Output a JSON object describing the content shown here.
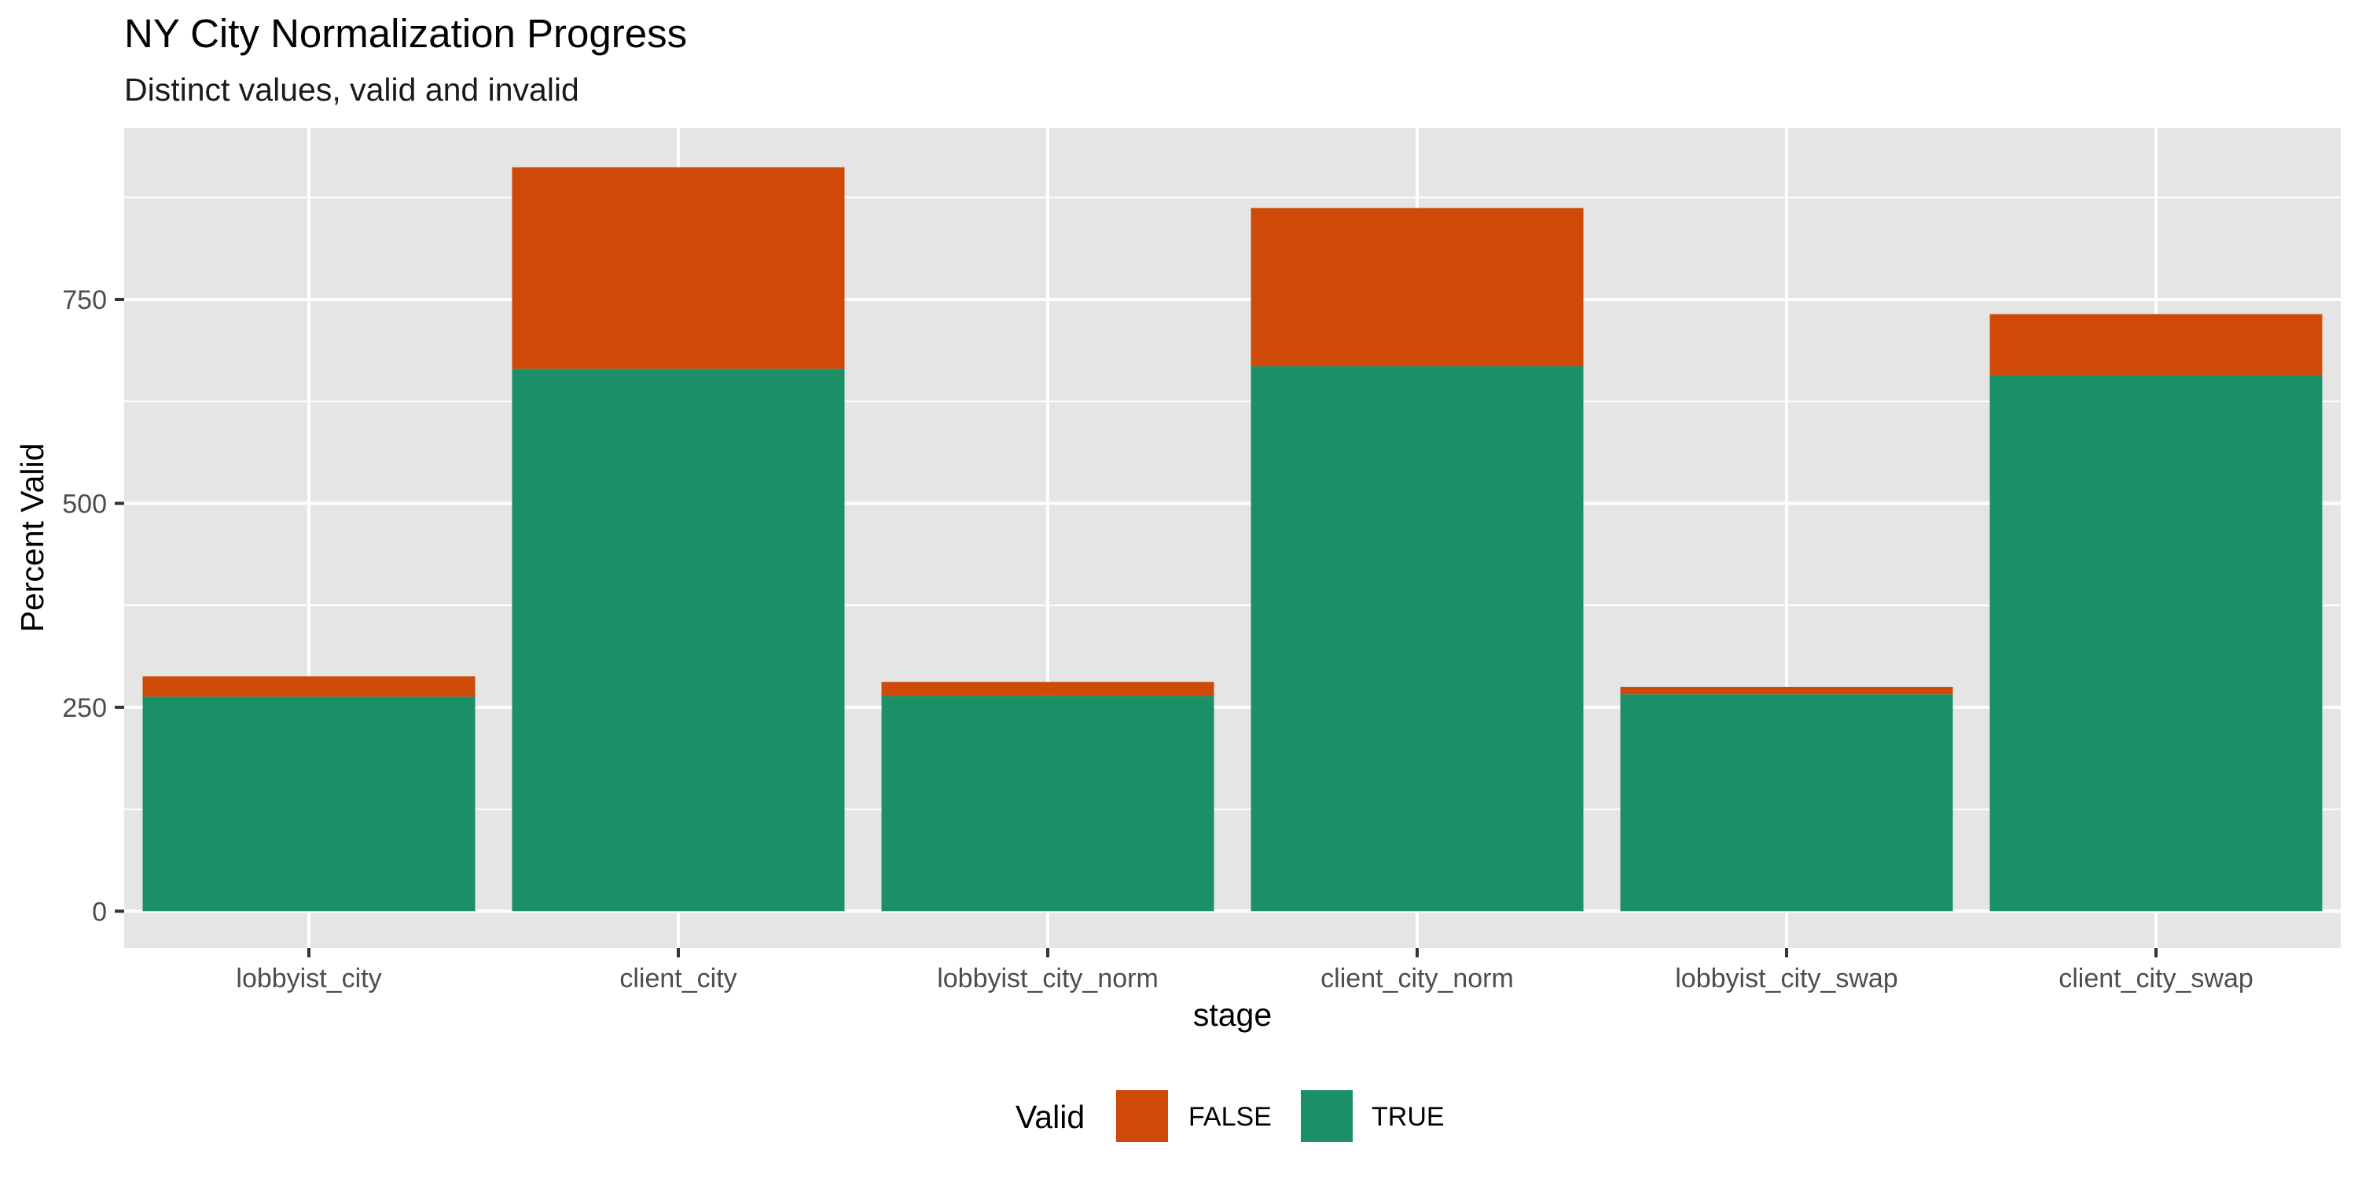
{
  "chart_data": {
    "type": "bar",
    "stacked": true,
    "title": "NY City Normalization Progress",
    "subtitle": "Distinct values, valid and invalid",
    "xlabel": "stage",
    "ylabel": "Percent Valid",
    "categories": [
      "lobbyist_city",
      "client_city",
      "lobbyist_city_norm",
      "client_city_norm",
      "lobbyist_city_swap",
      "client_city_swap"
    ],
    "series": [
      {
        "name": "TRUE",
        "color": "#1b9066",
        "values": [
          263,
          665,
          264,
          668,
          266,
          657
        ]
      },
      {
        "name": "FALSE",
        "color": "#cf4a09",
        "values": [
          25,
          247,
          17,
          194,
          9,
          75
        ]
      }
    ],
    "ylim": [
      -45,
      960
    ],
    "yticks": [
      0,
      250,
      500,
      750
    ],
    "grid": true,
    "legend": {
      "title": "Valid",
      "position": "bottom",
      "entries": [
        {
          "label": "FALSE",
          "color": "#cf4a09"
        },
        {
          "label": "TRUE",
          "color": "#1b9066"
        }
      ]
    },
    "panel_background": "#e5e5e5",
    "grid_color": "#ffffff"
  }
}
